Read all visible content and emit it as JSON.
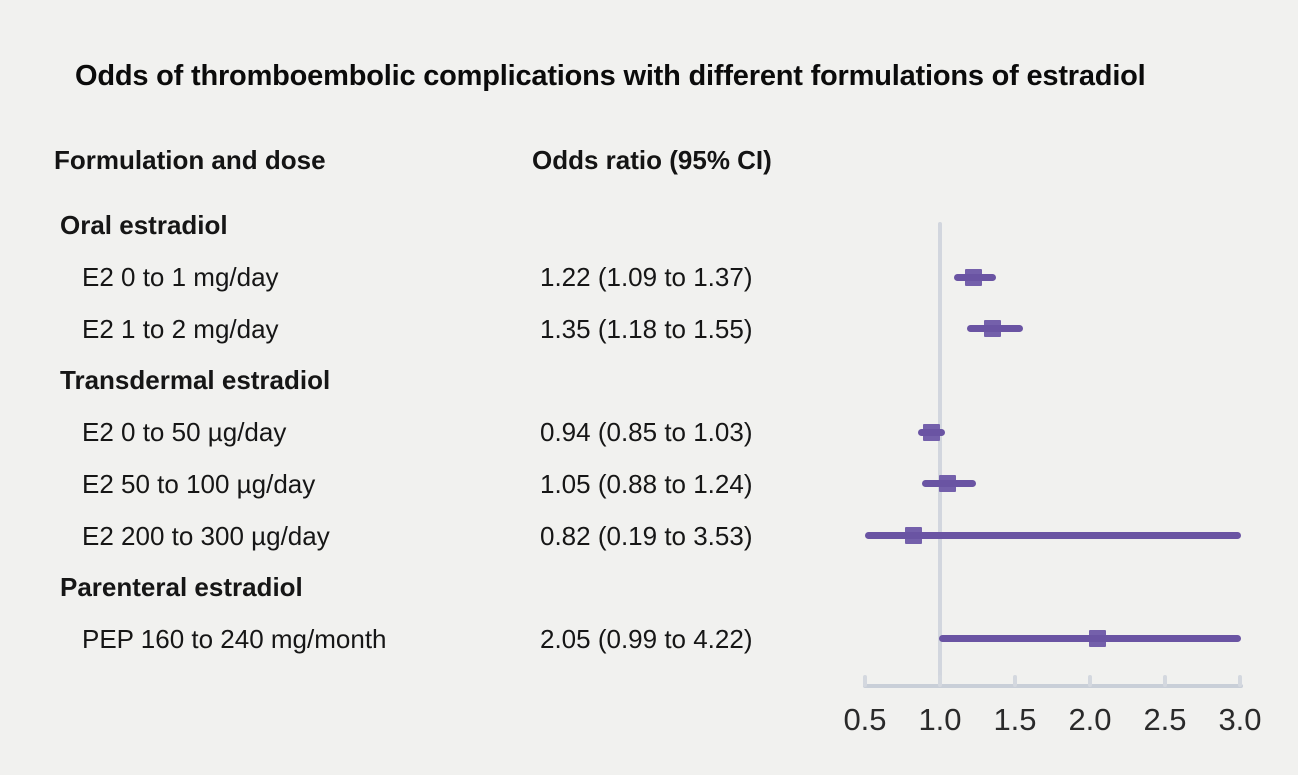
{
  "title": "Odds of thromboembolic complications with different formulations of estradiol",
  "columns": {
    "left": "Formulation and dose",
    "right": "Odds ratio (95% CI)"
  },
  "rows": [
    {
      "type": "section",
      "label": "Oral estradiol"
    },
    {
      "type": "item",
      "label": "E2 0 to 1 mg/day",
      "value": "1.22 (1.09 to 1.37)",
      "or": 1.22,
      "ci_low": 1.09,
      "ci_high": 1.37
    },
    {
      "type": "item",
      "label": "E2 1 to 2 mg/day",
      "value": "1.35 (1.18 to 1.55)",
      "or": 1.35,
      "ci_low": 1.18,
      "ci_high": 1.55
    },
    {
      "type": "section",
      "label": "Transdermal estradiol"
    },
    {
      "type": "item",
      "label": "E2 0 to 50 µg/day",
      "value": "0.94 (0.85 to 1.03)",
      "or": 0.94,
      "ci_low": 0.85,
      "ci_high": 1.03
    },
    {
      "type": "item",
      "label": "E2 50 to 100 µg/day",
      "value": "1.05 (0.88 to 1.24)",
      "or": 1.05,
      "ci_low": 0.88,
      "ci_high": 1.24
    },
    {
      "type": "item",
      "label": "E2 200 to 300 µg/day",
      "value": "0.82 (0.19 to 3.53)",
      "or": 0.82,
      "ci_low": 0.19,
      "ci_high": 3.53
    },
    {
      "type": "section",
      "label": "Parenteral estradiol"
    },
    {
      "type": "item",
      "label": "PEP 160 to 240 mg/month",
      "value": "2.05 (0.99 to 4.22)",
      "or": 2.05,
      "ci_low": 0.99,
      "ci_high": 4.22
    }
  ],
  "axis": {
    "tick_labels": [
      "0.5",
      "1.0",
      "1.5",
      "2.0",
      "2.5",
      "3.0"
    ],
    "tick_values": [
      0.5,
      1.0,
      1.5,
      2.0,
      2.5,
      3.0
    ],
    "min": 0.5,
    "max": 3.0,
    "reference_line": 1.0
  },
  "colors": {
    "background": "#f1f1ef",
    "text": "#161616",
    "ci_line": "#6a54a3",
    "or_square": "#7460ab",
    "axis_line": "#c9cfd8",
    "axis_tick": "#d4d8df",
    "reference_line": "#d2d6de"
  },
  "chart_data": {
    "type": "scatter",
    "subtype": "forest-plot",
    "title": "Odds of thromboembolic complications with different formulations of estradiol",
    "xlabel": "",
    "ylabel": "",
    "x_range": [
      0.5,
      3.0
    ],
    "x_ticks": [
      0.5,
      1.0,
      1.5,
      2.0,
      2.5,
      3.0
    ],
    "reference_line_x": 1.0,
    "grid": false,
    "legend": "none",
    "groups": [
      {
        "name": "Oral estradiol",
        "items": [
          {
            "label": "E2 0 to 1 mg/day",
            "odds_ratio": 1.22,
            "ci_low": 1.09,
            "ci_high": 1.37
          },
          {
            "label": "E2 1 to 2 mg/day",
            "odds_ratio": 1.35,
            "ci_low": 1.18,
            "ci_high": 1.55
          }
        ]
      },
      {
        "name": "Transdermal estradiol",
        "items": [
          {
            "label": "E2 0 to 50 µg/day",
            "odds_ratio": 0.94,
            "ci_low": 0.85,
            "ci_high": 1.03
          },
          {
            "label": "E2 50 to 100 µg/day",
            "odds_ratio": 1.05,
            "ci_low": 0.88,
            "ci_high": 1.24
          },
          {
            "label": "E2 200 to 300 µg/day",
            "odds_ratio": 0.82,
            "ci_low": 0.19,
            "ci_high": 3.53
          }
        ]
      },
      {
        "name": "Parenteral estradiol",
        "items": [
          {
            "label": "PEP 160 to 240 mg/month",
            "odds_ratio": 2.05,
            "ci_low": 0.99,
            "ci_high": 4.22
          }
        ]
      }
    ]
  }
}
